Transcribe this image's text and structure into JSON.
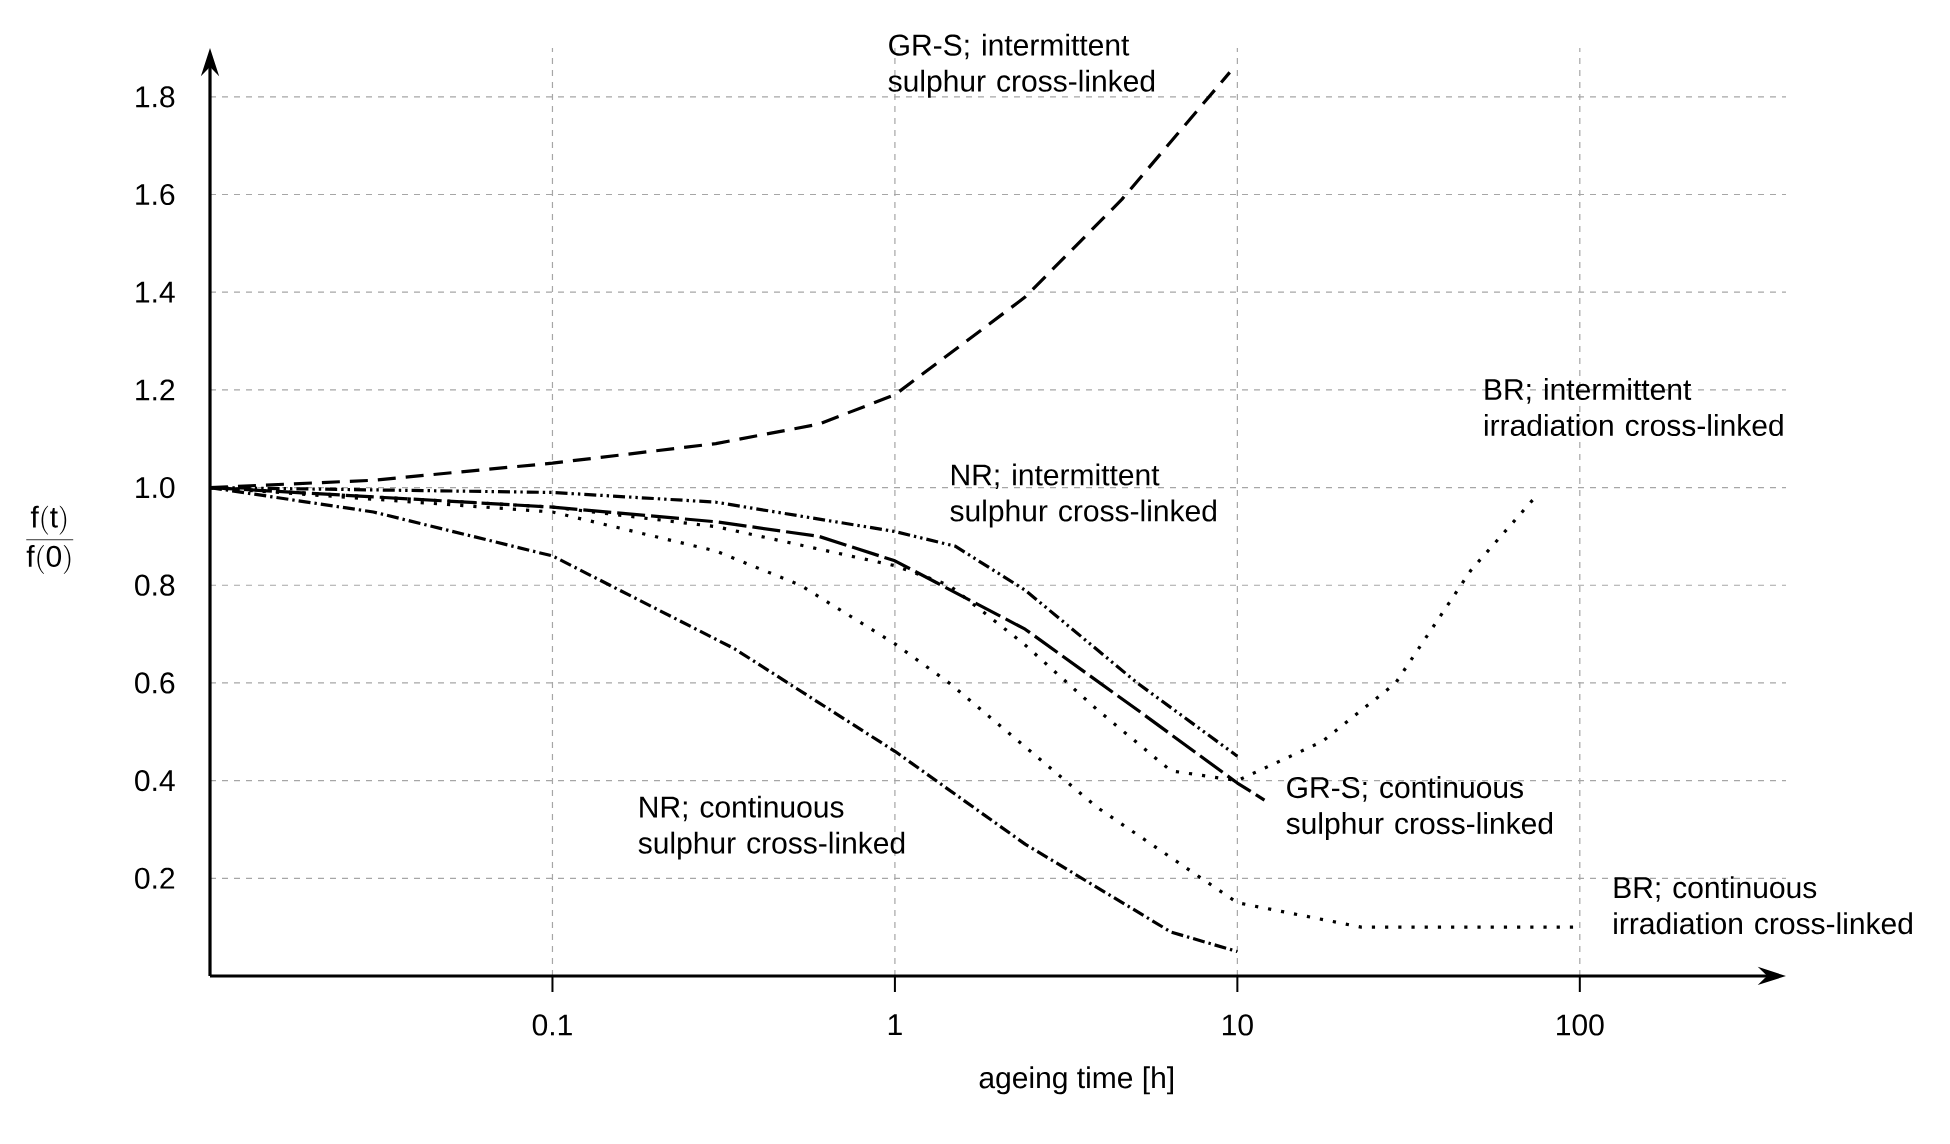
{
  "chart_data": {
    "type": "line",
    "xlabel": "ageing time [h]",
    "ylabel": "\\frac{\\mathrm{f(t)}}{\\mathrm{f(0)}}",
    "log": "x",
    "xlim": [
      0.01,
      400
    ],
    "ylim": [
      0,
      1.9
    ],
    "xticks": [
      0.1,
      1,
      10,
      100
    ],
    "yticks": [
      0.2,
      0.4,
      0.6,
      0.8,
      {
        "value": 1,
        "label": "1.0"
      },
      1.2,
      1.4,
      1.6,
      1.8
    ],
    "grid": true,
    "marker": "none",
    "series": [
      {
        "name": "GR-S; intermittent sulphur cross-linked",
        "color": "#000000",
        "line_style": "dashed",
        "x": [
          0.01,
          0.03,
          0.1,
          0.3,
          0.6,
          1,
          2.4,
          4.6,
          9.5
        ],
        "values": [
          1.0,
          1.015,
          1.05,
          1.09,
          1.13,
          1.19,
          1.39,
          1.59,
          1.85
        ]
      },
      {
        "name": "NR; intermittent sulphur cross-linked",
        "color": "#000000",
        "line_style": "dashdotdotted",
        "x": [
          0.01,
          0.1,
          0.3,
          1,
          1.5,
          2.4,
          5.1,
          10
        ],
        "values": [
          1.0,
          0.99,
          0.97,
          0.91,
          0.88,
          0.79,
          0.6,
          0.45
        ]
      },
      {
        "name": "BR; intermittent irradiation cross-linked",
        "color": "#000000",
        "line_style": "dotted",
        "x": [
          0.01,
          0.1,
          0.3,
          1,
          1.44,
          2.38,
          3.9,
          6.4,
          10,
          17.7,
          29,
          48,
          74
        ],
        "values": [
          1.0,
          0.96,
          0.92,
          0.84,
          0.8,
          0.68,
          0.545,
          0.42,
          0.4,
          0.48,
          0.6,
          0.83,
          0.98
        ]
      },
      {
        "name": "GR-S; continuous sulphur cross-linked",
        "color": "#000000",
        "line_style": "longdashed",
        "x": [
          0.01,
          0.1,
          0.3,
          0.6,
          1,
          2.4,
          5.1,
          10,
          12
        ],
        "values": [
          1.0,
          0.96,
          0.93,
          0.9,
          0.85,
          0.71,
          0.545,
          0.395,
          0.36
        ]
      },
      {
        "name": "BR; continuous irradiation cross-linked",
        "color": "#000000",
        "line_style": "dotted",
        "x": [
          0.01,
          0.1,
          0.3,
          0.53,
          1,
          1.44,
          3.9,
          10,
          23,
          100
        ],
        "values": [
          1.0,
          0.95,
          0.87,
          0.8,
          0.68,
          0.6,
          0.345,
          0.15,
          0.1,
          0.1
        ]
      },
      {
        "name": "NR; continuous sulphur cross-linked",
        "color": "#000000",
        "line_style": "dashdotted",
        "x": [
          0.01,
          0.03,
          0.1,
          0.34,
          1,
          2.4,
          6.4,
          10
        ],
        "values": [
          1.0,
          0.95,
          0.86,
          0.67,
          0.46,
          0.27,
          0.09,
          0.05
        ]
      }
    ]
  }
}
